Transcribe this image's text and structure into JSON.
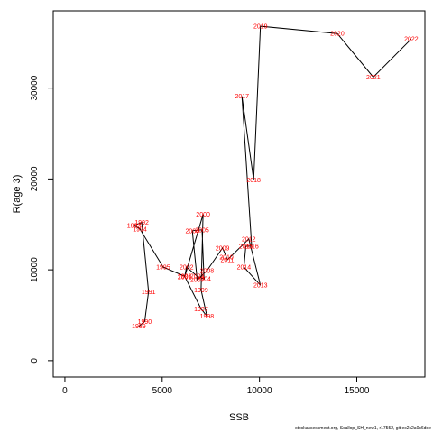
{
  "chart_data": {
    "type": "line",
    "xlabel": "SSB",
    "ylabel": "R(age 3)",
    "xlim": [
      -600,
      18500
    ],
    "ylim": [
      -1800,
      38500
    ],
    "xticks": [
      0,
      5000,
      10000,
      15000
    ],
    "yticks": [
      0,
      10000,
      20000,
      30000
    ],
    "xtick_labels": [
      "0",
      "5000",
      "10000",
      "15000"
    ],
    "ytick_labels": [
      "0",
      "10000",
      "20000",
      "30000"
    ],
    "line_color": "#000000",
    "label_color": "#ff0000",
    "points": [
      {
        "year": "1989",
        "x": 3800,
        "y": 3800
      },
      {
        "year": "1990",
        "x": 4100,
        "y": 4300
      },
      {
        "year": "1991",
        "x": 4300,
        "y": 7600
      },
      {
        "year": "1992",
        "x": 3950,
        "y": 15200
      },
      {
        "year": "1993",
        "x": 3550,
        "y": 14900
      },
      {
        "year": "1994",
        "x": 3850,
        "y": 14500
      },
      {
        "year": "1995",
        "x": 5050,
        "y": 10300
      },
      {
        "year": "1996",
        "x": 6150,
        "y": 9300
      },
      {
        "year": "1997",
        "x": 7000,
        "y": 5700
      },
      {
        "year": "1998",
        "x": 7300,
        "y": 4900
      },
      {
        "year": "1999",
        "x": 7000,
        "y": 7800
      },
      {
        "year": "2000",
        "x": 7100,
        "y": 16100
      },
      {
        "year": "2001",
        "x": 6150,
        "y": 9200
      },
      {
        "year": "2002",
        "x": 6250,
        "y": 10300
      },
      {
        "year": "2003",
        "x": 6800,
        "y": 9300
      },
      {
        "year": "2004",
        "x": 7150,
        "y": 9000
      },
      {
        "year": "2005",
        "x": 7050,
        "y": 14400
      },
      {
        "year": "2006",
        "x": 6550,
        "y": 14300
      },
      {
        "year": "2007",
        "x": 6800,
        "y": 8900
      },
      {
        "year": "2008",
        "x": 7300,
        "y": 9900
      },
      {
        "year": "2009",
        "x": 8100,
        "y": 12400
      },
      {
        "year": "2010",
        "x": 8300,
        "y": 11400
      },
      {
        "year": "2011",
        "x": 8350,
        "y": 11100
      },
      {
        "year": "2012",
        "x": 9450,
        "y": 13400
      },
      {
        "year": "2013",
        "x": 10050,
        "y": 8300
      },
      {
        "year": "2014",
        "x": 9200,
        "y": 10300
      },
      {
        "year": "2015",
        "x": 9300,
        "y": 12600
      },
      {
        "year": "2016",
        "x": 9600,
        "y": 12600
      },
      {
        "year": "2017",
        "x": 9100,
        "y": 29100
      },
      {
        "year": "2018",
        "x": 9700,
        "y": 19900
      },
      {
        "year": "2019",
        "x": 10050,
        "y": 36800
      },
      {
        "year": "2020",
        "x": 14000,
        "y": 36000
      },
      {
        "year": "2021",
        "x": 15850,
        "y": 31200
      },
      {
        "year": "2022",
        "x": 17800,
        "y": 35400
      }
    ]
  },
  "footer": {
    "source": "stockassessment.org, Scallop_SH_new1, r17552, git:ec2c2a0c6dde"
  }
}
